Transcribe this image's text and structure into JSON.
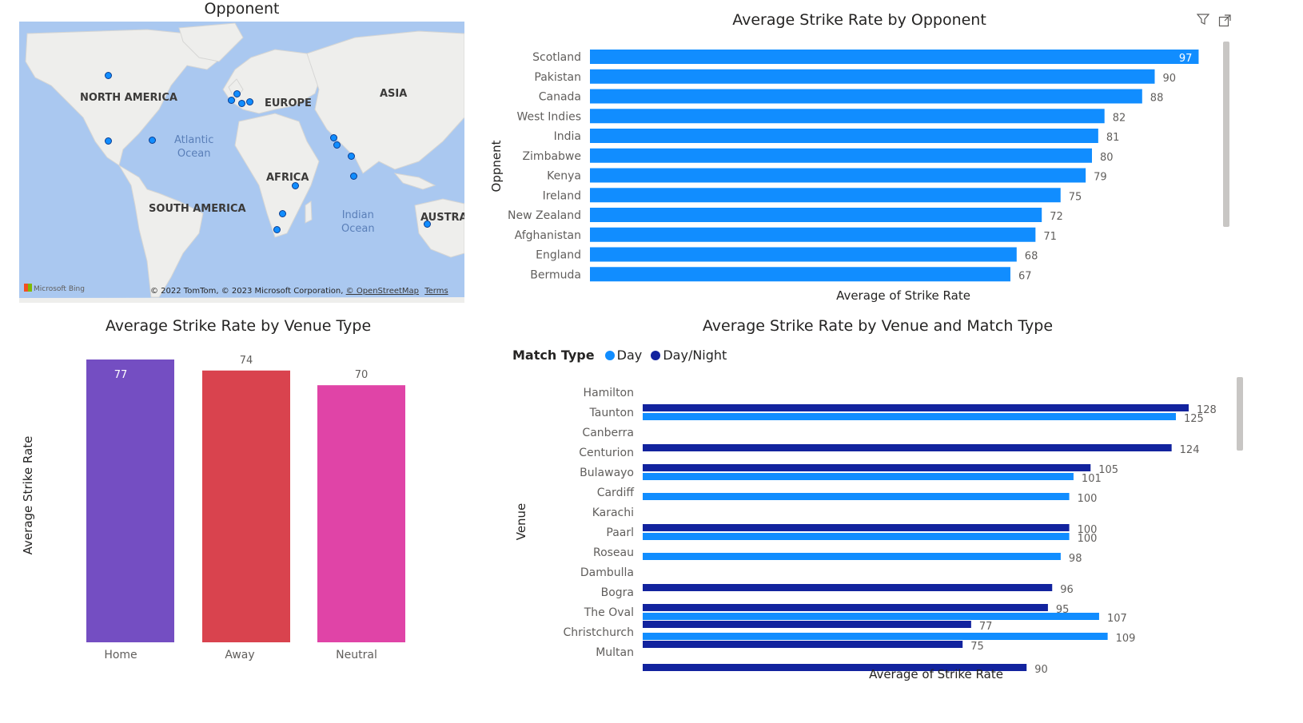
{
  "map": {
    "title": "Opponent",
    "labels": {
      "north_america": "NORTH AMERICA",
      "europe": "EUROPE",
      "asia": "ASIA",
      "africa": "AFRICA",
      "south_america": "SOUTH AMERICA",
      "australia": "AUSTRA",
      "atlantic_line1": "Atlantic",
      "atlantic_line2": "Ocean",
      "indian_line1": "Indian",
      "indian_line2": "Ocean"
    },
    "attribution": "© 2022 TomTom, © 2023 Microsoft Corporation,",
    "osm_link": "© OpenStreetMap",
    "terms_link": "Terms",
    "bing_logo": "Microsoft Bing",
    "marker_color": "#118dff"
  },
  "header_icons": {
    "filter": "filter-icon",
    "focus": "focus-mode-icon"
  },
  "colors": {
    "day": "#118dff",
    "daynight": "#12239e",
    "home": "#744ec2",
    "away": "#d9434e",
    "neutral": "#e044a7"
  },
  "chart_data": [
    {
      "type": "bar",
      "orientation": "horizontal",
      "title": "Average Strike Rate by Opponent",
      "xlabel": "Average of Strike Rate",
      "ylabel": "Oppnent",
      "categories": [
        "Scotland",
        "Pakistan",
        "Canada",
        "West Indies",
        "India",
        "Zimbabwe",
        "Kenya",
        "Ireland",
        "New Zealand",
        "Afghanistan",
        "England",
        "Bermuda"
      ],
      "values": [
        97,
        90,
        88,
        82,
        81,
        80,
        79,
        75,
        72,
        71,
        68,
        67
      ],
      "color": "#118dff"
    },
    {
      "type": "bar",
      "title": "Average Strike Rate by Venue Type",
      "xlabel": "",
      "ylabel": "Average Strike Rate",
      "categories": [
        "Home",
        "Away",
        "Neutral"
      ],
      "values": [
        77,
        74,
        70
      ],
      "colors": [
        "#744ec2",
        "#d9434e",
        "#e044a7"
      ]
    },
    {
      "type": "bar",
      "orientation": "horizontal",
      "title": "Average Strike Rate by Venue and Match Type",
      "xlabel": "Average of Strike Rate",
      "ylabel": "Venue",
      "legend_title": "Match Type",
      "legend_position": "top-left",
      "categories": [
        "Hamilton",
        "Taunton",
        "Canberra",
        "Centurion",
        "Bulawayo",
        "Cardiff",
        "Karachi",
        "Paarl",
        "Roseau",
        "Dambulla",
        "Bogra",
        "The Oval",
        "Christchurch",
        "Multan"
      ],
      "series": [
        {
          "name": "Day",
          "values": [
            null,
            125,
            null,
            null,
            101,
            100,
            null,
            100,
            98,
            null,
            null,
            107,
            109,
            null
          ]
        },
        {
          "name": "Day/Night",
          "values": [
            128,
            null,
            124,
            105,
            null,
            null,
            100,
            null,
            null,
            96,
            95,
            77,
            75,
            90
          ]
        }
      ]
    }
  ]
}
